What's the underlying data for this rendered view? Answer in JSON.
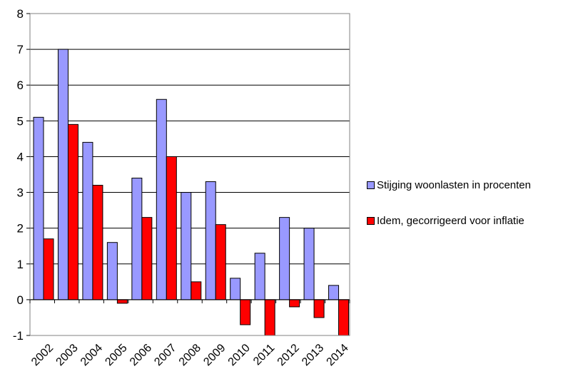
{
  "chart_data": {
    "type": "bar",
    "categories": [
      "2002",
      "2003",
      "2004",
      "2005",
      "2006",
      "2007",
      "2008",
      "2009",
      "2010",
      "2011",
      "2012",
      "2013",
      "2014"
    ],
    "series": [
      {
        "name": "Stijging woonlasten in procenten",
        "color": "#9999ff",
        "values": [
          5.1,
          7.0,
          4.4,
          1.6,
          3.4,
          5.6,
          3.0,
          3.3,
          0.6,
          1.3,
          2.3,
          2.0,
          0.4
        ]
      },
      {
        "name": "Idem, gecorrigeerd voor inflatie",
        "color": "#ff0000",
        "values": [
          1.7,
          4.9,
          3.2,
          -0.1,
          2.3,
          4.0,
          0.5,
          2.1,
          -0.7,
          -1.0,
          -0.2,
          -0.5,
          -1.0
        ]
      }
    ],
    "yticks": [
      "-1",
      "0",
      "1",
      "2",
      "3",
      "4",
      "5",
      "6",
      "7",
      "8"
    ],
    "ylim": [
      -1,
      8
    ],
    "grid": true,
    "legend_position": "right"
  }
}
